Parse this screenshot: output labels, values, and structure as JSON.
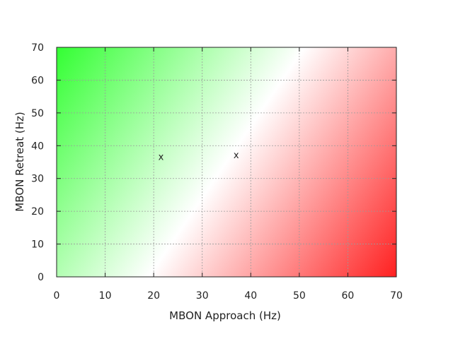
{
  "chart_data": {
    "type": "heatmap",
    "title": "",
    "xlabel": "MBON Approach (Hz)",
    "ylabel": "MBON Retreat (Hz)",
    "xlim": [
      0,
      70
    ],
    "ylim": [
      0,
      70
    ],
    "x_ticks": [
      0,
      10,
      20,
      30,
      40,
      50,
      60,
      70
    ],
    "y_ticks": [
      0,
      10,
      20,
      30,
      40,
      50,
      60,
      70
    ],
    "grid": true,
    "colormap": {
      "description": "diverging along retreat minus approach",
      "retreat_greater_color": "#33ff33",
      "balanced_color": "#ffffff",
      "approach_greater_color": "#ff2020"
    },
    "points": [
      {
        "x": 21.5,
        "y": 36.5,
        "marker": "x"
      },
      {
        "x": 37,
        "y": 37,
        "marker": "x"
      }
    ]
  }
}
